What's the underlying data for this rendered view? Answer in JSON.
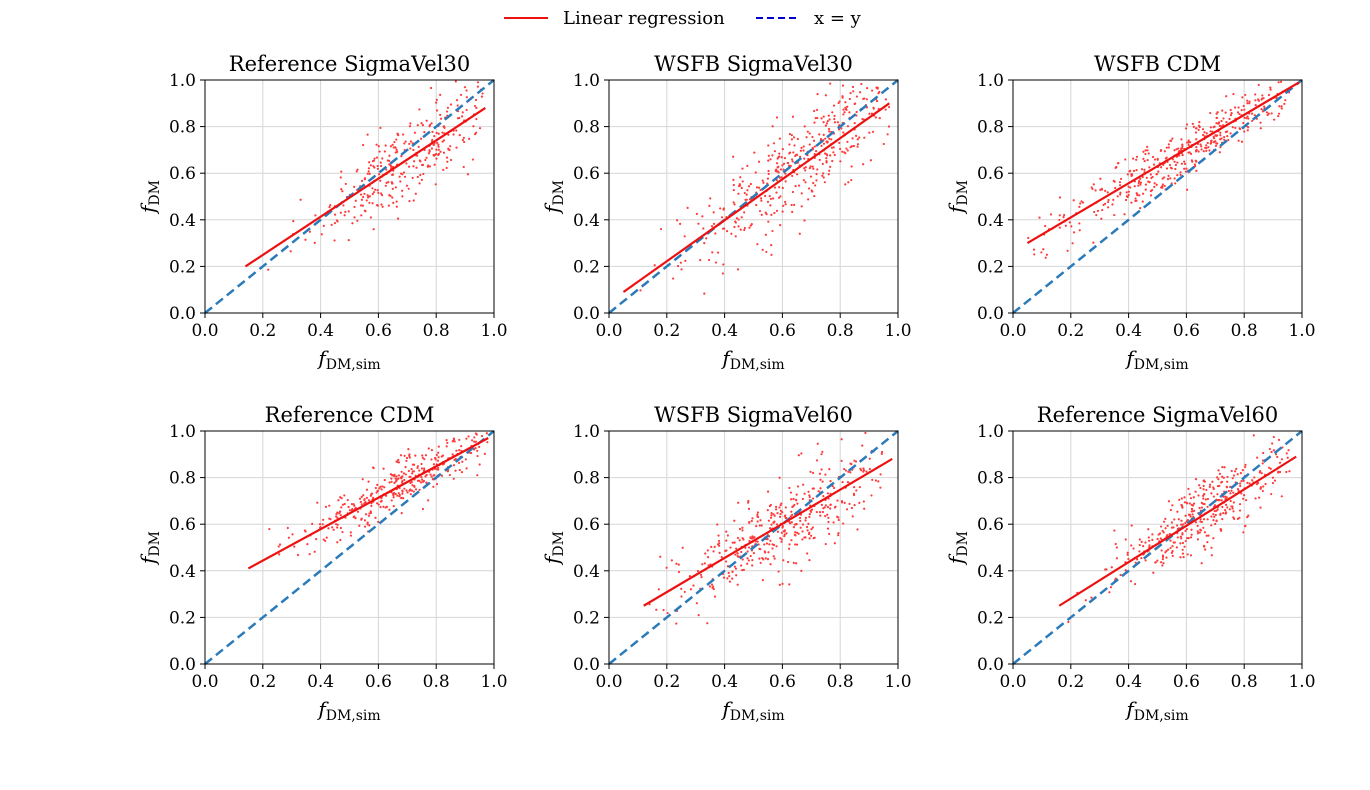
{
  "legend": {
    "entries": [
      {
        "label": "Linear regression",
        "color": "#ee1111",
        "style": "solid"
      },
      {
        "label": "x = y",
        "color": "#0000cc",
        "style": "dashed"
      }
    ],
    "placement": "top-center"
  },
  "chart_data": [
    {
      "type": "scatter",
      "title": "Reference SigmaVel30",
      "xlabel": "f_DM,sim",
      "ylabel": "f_DM",
      "xlim": [
        0,
        1
      ],
      "ylim": [
        0,
        1
      ],
      "grid": true,
      "xticks": [
        "0.0",
        "0.2",
        "0.4",
        "0.6",
        "0.8",
        "1.0"
      ],
      "yticks": [
        "0.0",
        "0.2",
        "0.4",
        "0.6",
        "0.8",
        "1.0"
      ],
      "points": {
        "seed": 11,
        "n": 330,
        "x_mean": 0.7,
        "x_sd": 0.16,
        "slope": 0.83,
        "intercept": 0.08,
        "noise": 0.085,
        "x_min": 0.14,
        "x_max": 0.97
      },
      "regression": {
        "x": [
          0.14,
          0.97
        ],
        "y": [
          0.2,
          0.88
        ]
      },
      "identity": {
        "x": [
          0,
          1
        ],
        "y": [
          0,
          1
        ]
      }
    },
    {
      "type": "scatter",
      "title": "WSFB SigmaVel30",
      "xlabel": "f_DM,sim",
      "ylabel": "f_DM",
      "xlim": [
        0,
        1
      ],
      "ylim": [
        0,
        1
      ],
      "grid": true,
      "xticks": [
        "0.0",
        "0.2",
        "0.4",
        "0.6",
        "0.8",
        "1.0"
      ],
      "yticks": [
        "0.0",
        "0.2",
        "0.4",
        "0.6",
        "0.8",
        "1.0"
      ],
      "points": {
        "seed": 23,
        "n": 420,
        "x_mean": 0.66,
        "x_sd": 0.2,
        "slope": 0.9,
        "intercept": 0.04,
        "noise": 0.1,
        "x_min": 0.05,
        "x_max": 0.97
      },
      "regression": {
        "x": [
          0.05,
          0.97
        ],
        "y": [
          0.09,
          0.9
        ]
      },
      "identity": {
        "x": [
          0,
          1
        ],
        "y": [
          0,
          1
        ]
      }
    },
    {
      "type": "scatter",
      "title": "WSFB CDM",
      "xlabel": "f_DM,sim",
      "ylabel": "f_DM",
      "xlim": [
        0,
        1
      ],
      "ylim": [
        0,
        1
      ],
      "grid": true,
      "xticks": [
        "0.0",
        "0.2",
        "0.4",
        "0.6",
        "0.8",
        "1.0"
      ],
      "yticks": [
        "0.0",
        "0.2",
        "0.4",
        "0.6",
        "0.8",
        "1.0"
      ],
      "points": {
        "seed": 37,
        "n": 430,
        "x_mean": 0.62,
        "x_sd": 0.24,
        "slope": 0.73,
        "intercept": 0.26,
        "noise": 0.055,
        "x_min": 0.05,
        "x_max": 0.96
      },
      "regression": {
        "x": [
          0.05,
          0.99
        ],
        "y": [
          0.3,
          0.99
        ]
      },
      "identity": {
        "x": [
          0,
          1
        ],
        "y": [
          0,
          1
        ]
      }
    },
    {
      "type": "scatter",
      "title": "Reference CDM",
      "xlabel": "f_DM,sim",
      "ylabel": "f_DM",
      "xlim": [
        0,
        1
      ],
      "ylim": [
        0,
        1
      ],
      "grid": true,
      "xticks": [
        "0.0",
        "0.2",
        "0.4",
        "0.6",
        "0.8",
        "1.0"
      ],
      "yticks": [
        "0.0",
        "0.2",
        "0.4",
        "0.6",
        "0.8",
        "1.0"
      ],
      "points": {
        "seed": 41,
        "n": 380,
        "x_mean": 0.7,
        "x_sd": 0.19,
        "slope": 0.68,
        "intercept": 0.31,
        "noise": 0.055,
        "x_min": 0.15,
        "x_max": 0.98
      },
      "regression": {
        "x": [
          0.15,
          0.98
        ],
        "y": [
          0.41,
          0.97
        ]
      },
      "identity": {
        "x": [
          0,
          1
        ],
        "y": [
          0,
          1
        ]
      }
    },
    {
      "type": "scatter",
      "title": "WSFB SigmaVel60",
      "xlabel": "f_DM,sim",
      "ylabel": "f_DM",
      "xlim": [
        0,
        1
      ],
      "ylim": [
        0,
        1
      ],
      "grid": true,
      "xticks": [
        "0.0",
        "0.2",
        "0.4",
        "0.6",
        "0.8",
        "1.0"
      ],
      "yticks": [
        "0.0",
        "0.2",
        "0.4",
        "0.6",
        "0.8",
        "1.0"
      ],
      "points": {
        "seed": 53,
        "n": 430,
        "x_mean": 0.6,
        "x_sd": 0.2,
        "slope": 0.74,
        "intercept": 0.15,
        "noise": 0.095,
        "x_min": 0.12,
        "x_max": 0.96
      },
      "regression": {
        "x": [
          0.12,
          0.98
        ],
        "y": [
          0.25,
          0.88
        ]
      },
      "identity": {
        "x": [
          0,
          1
        ],
        "y": [
          0,
          1
        ]
      }
    },
    {
      "type": "scatter",
      "title": "Reference SigmaVel60",
      "xlabel": "f_DM,sim",
      "ylabel": "f_DM",
      "xlim": [
        0,
        1
      ],
      "ylim": [
        0,
        1
      ],
      "grid": true,
      "xticks": [
        "0.0",
        "0.2",
        "0.4",
        "0.6",
        "0.8",
        "1.0"
      ],
      "yticks": [
        "0.0",
        "0.2",
        "0.4",
        "0.6",
        "0.8",
        "1.0"
      ],
      "points": {
        "seed": 67,
        "n": 400,
        "x_mean": 0.66,
        "x_sd": 0.15,
        "slope": 0.79,
        "intercept": 0.12,
        "noise": 0.075,
        "x_min": 0.16,
        "x_max": 0.96
      },
      "regression": {
        "x": [
          0.16,
          0.98
        ],
        "y": [
          0.25,
          0.89
        ]
      },
      "identity": {
        "x": [
          0,
          1
        ],
        "y": [
          0,
          1
        ]
      }
    }
  ]
}
